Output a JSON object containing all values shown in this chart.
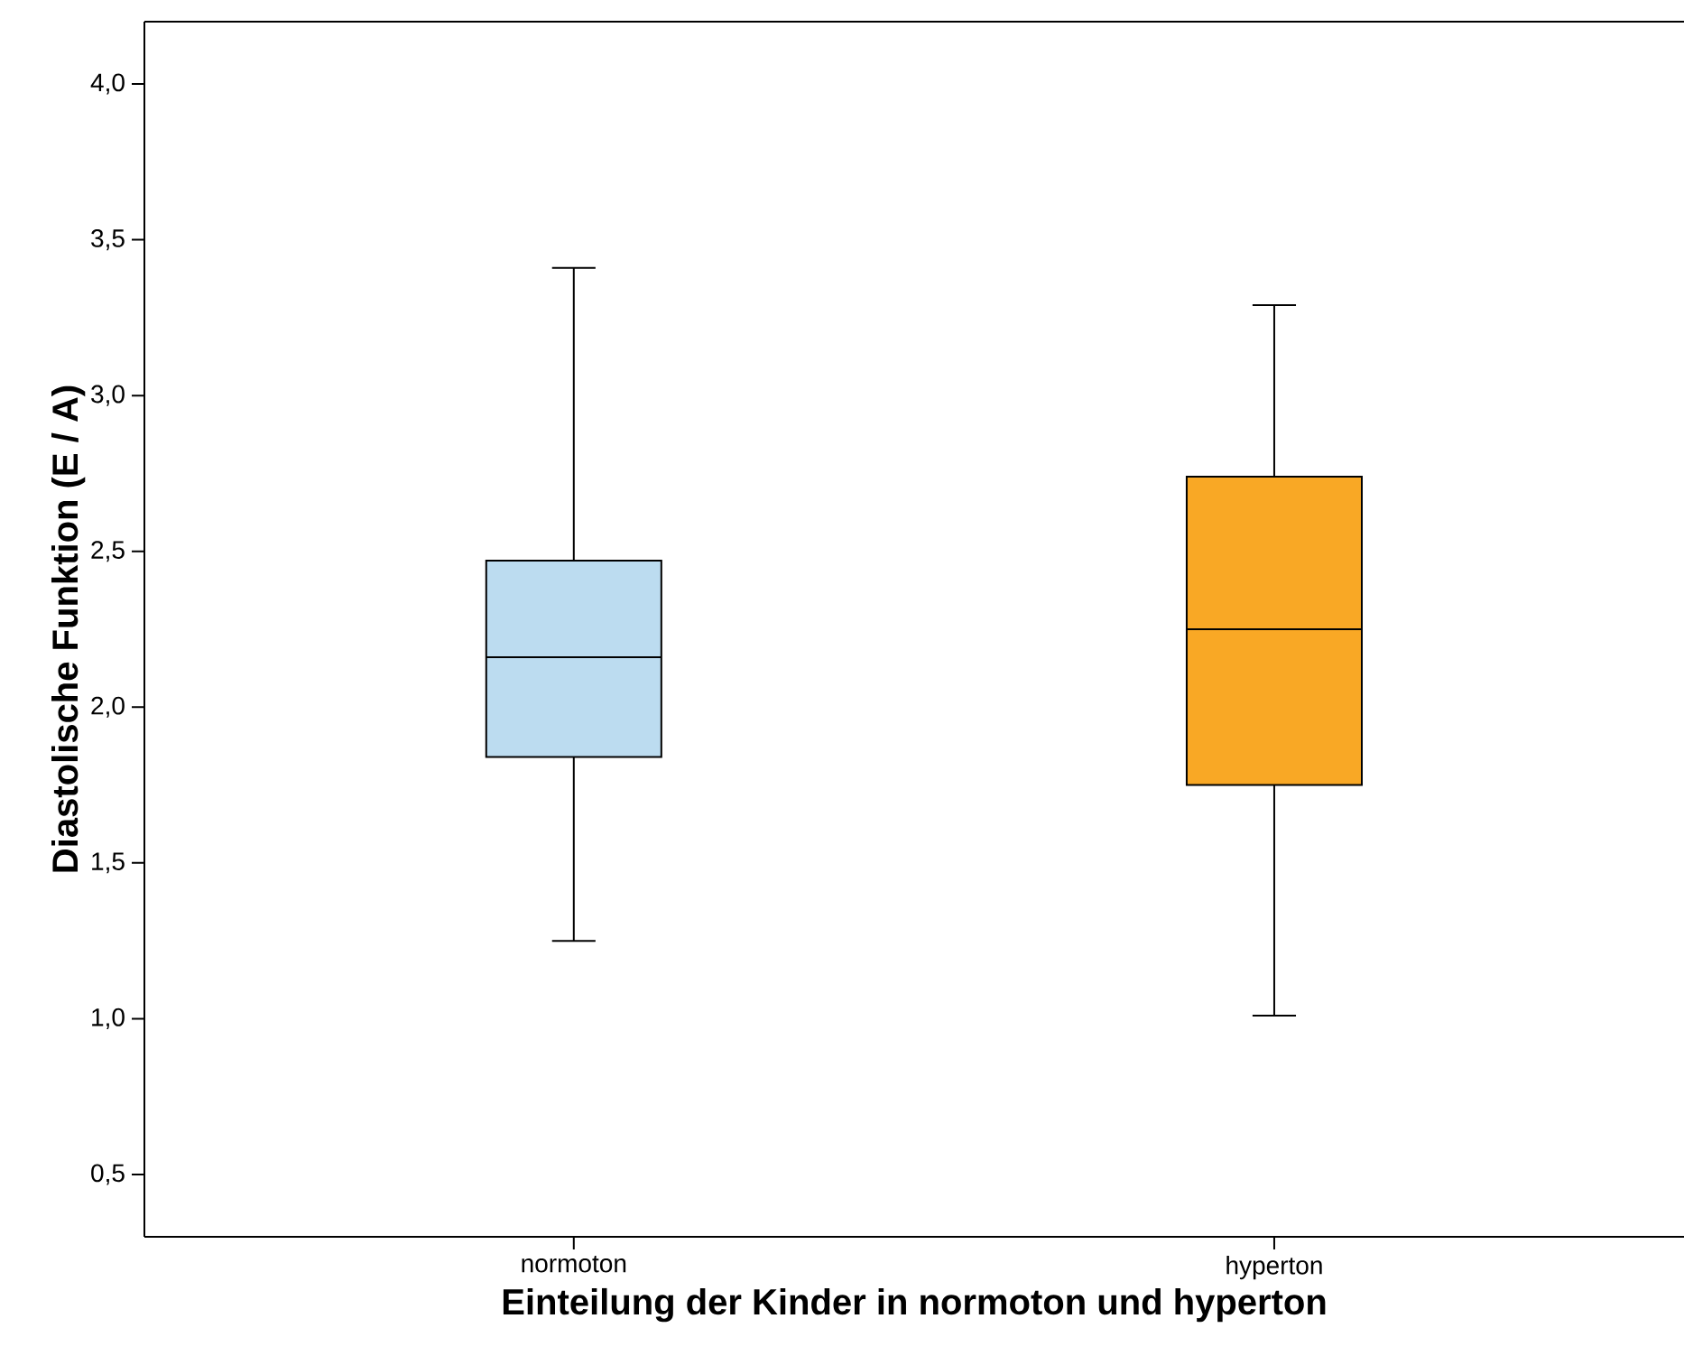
{
  "chart_data": {
    "type": "box",
    "xlabel": "Einteilung der Kinder in normoton und hyperton",
    "ylabel": "Diastolische Funktion (E / A)",
    "categories": [
      "normoton",
      "hyperton"
    ],
    "boxes": [
      {
        "low": 1.25,
        "q1": 1.84,
        "median": 2.16,
        "q3": 2.47,
        "high": 3.41
      },
      {
        "low": 1.01,
        "q1": 1.75,
        "median": 2.25,
        "q3": 2.74,
        "high": 3.29
      }
    ],
    "colors": [
      "#bcdcf0",
      "#f9a825"
    ],
    "ylim": [
      0.3,
      4.2
    ],
    "yticks": [
      {
        "value": 0.5,
        "label": "0,5"
      },
      {
        "value": 1.0,
        "label": "1,0"
      },
      {
        "value": 1.5,
        "label": "1,5"
      },
      {
        "value": 2.0,
        "label": "2,0"
      },
      {
        "value": 2.5,
        "label": "2,5"
      },
      {
        "value": 3.0,
        "label": "3,0"
      },
      {
        "value": 3.5,
        "label": "3,5"
      },
      {
        "value": 4.0,
        "label": "4,0"
      }
    ]
  }
}
